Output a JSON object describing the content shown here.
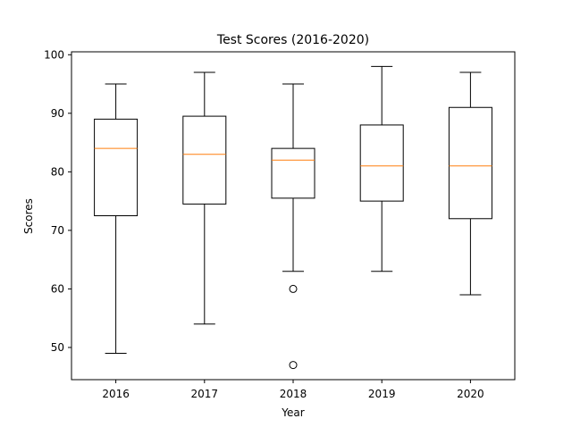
{
  "chart_data": {
    "type": "box",
    "title": "Test Scores (2016-2020)",
    "xlabel": "Year",
    "ylabel": "Scores",
    "ylim": [
      44.5,
      100.5
    ],
    "yticks": [
      50,
      60,
      70,
      80,
      90,
      100
    ],
    "categories": [
      "2016",
      "2017",
      "2018",
      "2019",
      "2020"
    ],
    "boxes": [
      {
        "whisker_low": 49,
        "q1": 72.5,
        "median": 84,
        "q3": 89,
        "whisker_high": 95,
        "outliers": []
      },
      {
        "whisker_low": 54,
        "q1": 74.5,
        "median": 83,
        "q3": 89.5,
        "whisker_high": 97,
        "outliers": []
      },
      {
        "whisker_low": 63,
        "q1": 75.5,
        "median": 82,
        "q3": 84,
        "whisker_high": 95,
        "outliers": [
          60,
          47
        ]
      },
      {
        "whisker_low": 63,
        "q1": 75,
        "median": 81,
        "q3": 88,
        "whisker_high": 98,
        "outliers": []
      },
      {
        "whisker_low": 59,
        "q1": 72,
        "median": 81,
        "q3": 91,
        "whisker_high": 97,
        "outliers": []
      }
    ],
    "colors": {
      "box": "#000000",
      "median": "#ff7f0e",
      "outlier": "#000000"
    },
    "grid": false,
    "legend": "none"
  }
}
